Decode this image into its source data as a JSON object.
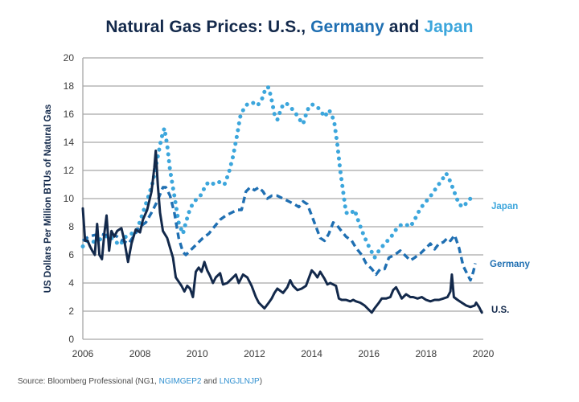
{
  "title": {
    "part1": "Natural Gas Prices: U.S., ",
    "part2": "Germany",
    "part3": " and ",
    "part4": "Japan"
  },
  "source": {
    "prefix": "Source: Bloomberg Professional (NG1, ",
    "germany_code": "NGIMGEP2",
    "middle": " and ",
    "japan_code": "LNGJLNJP",
    "suffix": ")"
  },
  "colors": {
    "us": "#13294b",
    "germany": "#1f6fb2",
    "japan": "#3ca6dc",
    "grid": "#a6a6a6"
  },
  "chart_data": {
    "type": "line",
    "title": "Natural Gas Prices: U.S., Germany and Japan",
    "xlabel": "",
    "ylabel": "US Dollars Per Million BTUs of Natural Gas",
    "xlim": [
      2006,
      2020
    ],
    "ylim": [
      0,
      20
    ],
    "xticks": [
      "2006",
      "2008",
      "2010",
      "2012",
      "2014",
      "2016",
      "2018",
      "2020"
    ],
    "yticks": [
      "0",
      "2",
      "4",
      "6",
      "8",
      "10",
      "12",
      "14",
      "16",
      "18",
      "20"
    ],
    "grid": "horizontal",
    "legend": "inline-right",
    "series": [
      {
        "name": "Japan",
        "style": "dotted",
        "points": [
          [
            2006.0,
            6.6
          ],
          [
            2006.15,
            7.0
          ],
          [
            2006.3,
            6.9
          ],
          [
            2006.5,
            7.0
          ],
          [
            2006.7,
            7.2
          ],
          [
            2006.9,
            7.4
          ],
          [
            2007.1,
            7.0
          ],
          [
            2007.3,
            6.7
          ],
          [
            2007.5,
            7.3
          ],
          [
            2007.7,
            7.5
          ],
          [
            2007.9,
            7.8
          ],
          [
            2008.0,
            8.4
          ],
          [
            2008.15,
            9.3
          ],
          [
            2008.3,
            10.2
          ],
          [
            2008.45,
            11.2
          ],
          [
            2008.6,
            12.8
          ],
          [
            2008.75,
            14.3
          ],
          [
            2008.85,
            15.0
          ],
          [
            2008.95,
            13.8
          ],
          [
            2009.05,
            12.0
          ],
          [
            2009.2,
            10.2
          ],
          [
            2009.35,
            8.3
          ],
          [
            2009.5,
            7.5
          ],
          [
            2009.6,
            8.3
          ],
          [
            2009.75,
            9.3
          ],
          [
            2009.9,
            9.8
          ],
          [
            2010.0,
            10.0
          ],
          [
            2010.15,
            10.3
          ],
          [
            2010.3,
            11.0
          ],
          [
            2010.45,
            11.2
          ],
          [
            2010.6,
            11.0
          ],
          [
            2010.8,
            11.2
          ],
          [
            2010.95,
            11.0
          ],
          [
            2011.1,
            11.8
          ],
          [
            2011.25,
            13.0
          ],
          [
            2011.4,
            14.6
          ],
          [
            2011.5,
            15.8
          ],
          [
            2011.65,
            16.5
          ],
          [
            2011.8,
            16.8
          ],
          [
            2011.95,
            16.8
          ],
          [
            2012.1,
            16.6
          ],
          [
            2012.25,
            17.0
          ],
          [
            2012.4,
            17.9
          ],
          [
            2012.5,
            17.9
          ],
          [
            2012.6,
            17.0
          ],
          [
            2012.7,
            16.0
          ],
          [
            2012.8,
            15.6
          ],
          [
            2012.95,
            16.5
          ],
          [
            2013.1,
            16.8
          ],
          [
            2013.25,
            16.5
          ],
          [
            2013.4,
            16.2
          ],
          [
            2013.55,
            15.7
          ],
          [
            2013.7,
            15.3
          ],
          [
            2013.85,
            16.3
          ],
          [
            2014.0,
            16.7
          ],
          [
            2014.15,
            16.6
          ],
          [
            2014.3,
            16.3
          ],
          [
            2014.45,
            15.8
          ],
          [
            2014.6,
            16.3
          ],
          [
            2014.7,
            16.0
          ],
          [
            2014.8,
            15.3
          ],
          [
            2014.9,
            13.8
          ],
          [
            2015.0,
            12.0
          ],
          [
            2015.1,
            10.5
          ],
          [
            2015.2,
            9.0
          ],
          [
            2015.35,
            8.9
          ],
          [
            2015.5,
            9.2
          ],
          [
            2015.65,
            8.3
          ],
          [
            2015.8,
            7.5
          ],
          [
            2015.95,
            6.8
          ],
          [
            2016.1,
            6.2
          ],
          [
            2016.2,
            5.8
          ],
          [
            2016.35,
            6.3
          ],
          [
            2016.55,
            6.8
          ],
          [
            2016.75,
            7.2
          ],
          [
            2016.95,
            7.8
          ],
          [
            2017.1,
            8.1
          ],
          [
            2017.25,
            8.2
          ],
          [
            2017.45,
            8.0
          ],
          [
            2017.6,
            8.5
          ],
          [
            2017.8,
            9.3
          ],
          [
            2018.0,
            9.8
          ],
          [
            2018.2,
            10.3
          ],
          [
            2018.4,
            10.9
          ],
          [
            2018.55,
            11.3
          ],
          [
            2018.7,
            11.8
          ],
          [
            2018.85,
            11.2
          ],
          [
            2019.0,
            10.4
          ],
          [
            2019.15,
            9.6
          ],
          [
            2019.3,
            9.4
          ],
          [
            2019.45,
            9.8
          ],
          [
            2019.55,
            10.0
          ],
          [
            2019.65,
            9.6
          ]
        ]
      },
      {
        "name": "Germany",
        "style": "dashed",
        "points": [
          [
            2006.0,
            7.0
          ],
          [
            2006.2,
            7.3
          ],
          [
            2006.4,
            7.4
          ],
          [
            2006.6,
            7.5
          ],
          [
            2006.8,
            7.4
          ],
          [
            2007.0,
            7.5
          ],
          [
            2007.2,
            7.3
          ],
          [
            2007.4,
            7.0
          ],
          [
            2007.6,
            6.8
          ],
          [
            2007.8,
            7.4
          ],
          [
            2008.0,
            8.0
          ],
          [
            2008.2,
            8.3
          ],
          [
            2008.4,
            9.0
          ],
          [
            2008.6,
            9.8
          ],
          [
            2008.8,
            10.8
          ],
          [
            2008.9,
            10.8
          ],
          [
            2009.05,
            10.2
          ],
          [
            2009.2,
            9.0
          ],
          [
            2009.35,
            7.2
          ],
          [
            2009.5,
            6.2
          ],
          [
            2009.6,
            6.0
          ],
          [
            2009.8,
            6.4
          ],
          [
            2010.0,
            6.8
          ],
          [
            2010.2,
            7.2
          ],
          [
            2010.4,
            7.5
          ],
          [
            2010.6,
            8.0
          ],
          [
            2010.8,
            8.5
          ],
          [
            2011.0,
            8.8
          ],
          [
            2011.2,
            9.0
          ],
          [
            2011.4,
            9.2
          ],
          [
            2011.55,
            9.2
          ],
          [
            2011.7,
            10.5
          ],
          [
            2011.85,
            10.8
          ],
          [
            2012.0,
            10.6
          ],
          [
            2012.15,
            10.8
          ],
          [
            2012.3,
            10.5
          ],
          [
            2012.45,
            10.0
          ],
          [
            2012.6,
            10.2
          ],
          [
            2012.8,
            10.2
          ],
          [
            2013.0,
            10.0
          ],
          [
            2013.2,
            9.8
          ],
          [
            2013.4,
            9.6
          ],
          [
            2013.55,
            9.4
          ],
          [
            2013.7,
            9.8
          ],
          [
            2013.85,
            9.6
          ],
          [
            2014.0,
            8.8
          ],
          [
            2014.15,
            8.0
          ],
          [
            2014.3,
            7.2
          ],
          [
            2014.45,
            7.0
          ],
          [
            2014.6,
            7.5
          ],
          [
            2014.75,
            8.3
          ],
          [
            2014.85,
            8.2
          ],
          [
            2015.0,
            7.8
          ],
          [
            2015.2,
            7.3
          ],
          [
            2015.4,
            7.0
          ],
          [
            2015.55,
            6.5
          ],
          [
            2015.75,
            6.0
          ],
          [
            2015.9,
            5.4
          ],
          [
            2016.1,
            5.0
          ],
          [
            2016.25,
            4.6
          ],
          [
            2016.4,
            5.0
          ],
          [
            2016.55,
            5.0
          ],
          [
            2016.7,
            5.8
          ],
          [
            2016.9,
            6.0
          ],
          [
            2017.1,
            6.3
          ],
          [
            2017.3,
            5.9
          ],
          [
            2017.45,
            5.6
          ],
          [
            2017.6,
            5.8
          ],
          [
            2017.8,
            6.1
          ],
          [
            2018.0,
            6.5
          ],
          [
            2018.15,
            6.8
          ],
          [
            2018.3,
            6.4
          ],
          [
            2018.45,
            6.8
          ],
          [
            2018.6,
            6.9
          ],
          [
            2018.75,
            7.2
          ],
          [
            2018.85,
            7.0
          ],
          [
            2019.0,
            7.4
          ],
          [
            2019.15,
            6.5
          ],
          [
            2019.3,
            5.2
          ],
          [
            2019.45,
            4.6
          ],
          [
            2019.55,
            4.2
          ],
          [
            2019.65,
            4.8
          ],
          [
            2019.72,
            5.4
          ]
        ]
      },
      {
        "name": "U.S.",
        "style": "solid",
        "points": [
          [
            2006.0,
            9.3
          ],
          [
            2006.08,
            7.0
          ],
          [
            2006.17,
            7.0
          ],
          [
            2006.25,
            6.6
          ],
          [
            2006.33,
            6.3
          ],
          [
            2006.42,
            6.0
          ],
          [
            2006.5,
            8.2
          ],
          [
            2006.58,
            6.0
          ],
          [
            2006.67,
            5.7
          ],
          [
            2006.75,
            7.5
          ],
          [
            2006.83,
            8.8
          ],
          [
            2006.92,
            6.3
          ],
          [
            2007.0,
            7.7
          ],
          [
            2007.1,
            7.3
          ],
          [
            2007.2,
            7.7
          ],
          [
            2007.35,
            7.9
          ],
          [
            2007.45,
            7.0
          ],
          [
            2007.58,
            5.5
          ],
          [
            2007.7,
            6.8
          ],
          [
            2007.85,
            7.8
          ],
          [
            2008.0,
            7.6
          ],
          [
            2008.1,
            8.5
          ],
          [
            2008.25,
            9.2
          ],
          [
            2008.4,
            10.5
          ],
          [
            2008.5,
            12.2
          ],
          [
            2008.55,
            13.4
          ],
          [
            2008.62,
            11.0
          ],
          [
            2008.7,
            9.0
          ],
          [
            2008.8,
            7.7
          ],
          [
            2008.95,
            7.2
          ],
          [
            2009.05,
            6.5
          ],
          [
            2009.15,
            5.8
          ],
          [
            2009.25,
            4.4
          ],
          [
            2009.35,
            4.1
          ],
          [
            2009.45,
            3.8
          ],
          [
            2009.55,
            3.4
          ],
          [
            2009.65,
            3.8
          ],
          [
            2009.75,
            3.6
          ],
          [
            2009.85,
            3.0
          ],
          [
            2009.95,
            4.8
          ],
          [
            2010.05,
            5.1
          ],
          [
            2010.15,
            4.8
          ],
          [
            2010.25,
            5.5
          ],
          [
            2010.35,
            4.9
          ],
          [
            2010.45,
            4.5
          ],
          [
            2010.55,
            4.0
          ],
          [
            2010.65,
            4.4
          ],
          [
            2010.8,
            4.7
          ],
          [
            2010.9,
            3.9
          ],
          [
            2011.05,
            4.0
          ],
          [
            2011.2,
            4.3
          ],
          [
            2011.35,
            4.6
          ],
          [
            2011.45,
            4.0
          ],
          [
            2011.6,
            4.6
          ],
          [
            2011.75,
            4.4
          ],
          [
            2011.9,
            3.8
          ],
          [
            2012.05,
            3.0
          ],
          [
            2012.15,
            2.6
          ],
          [
            2012.25,
            2.4
          ],
          [
            2012.35,
            2.2
          ],
          [
            2012.5,
            2.6
          ],
          [
            2012.6,
            2.9
          ],
          [
            2012.7,
            3.3
          ],
          [
            2012.8,
            3.6
          ],
          [
            2013.0,
            3.3
          ],
          [
            2013.15,
            3.7
          ],
          [
            2013.25,
            4.2
          ],
          [
            2013.35,
            3.8
          ],
          [
            2013.5,
            3.5
          ],
          [
            2013.65,
            3.6
          ],
          [
            2013.8,
            3.8
          ],
          [
            2014.0,
            4.9
          ],
          [
            2014.1,
            4.7
          ],
          [
            2014.2,
            4.4
          ],
          [
            2014.3,
            4.8
          ],
          [
            2014.45,
            4.3
          ],
          [
            2014.55,
            3.9
          ],
          [
            2014.65,
            4.0
          ],
          [
            2014.75,
            3.9
          ],
          [
            2014.85,
            3.8
          ],
          [
            2014.95,
            2.9
          ],
          [
            2015.05,
            2.8
          ],
          [
            2015.2,
            2.8
          ],
          [
            2015.35,
            2.7
          ],
          [
            2015.45,
            2.8
          ],
          [
            2015.55,
            2.7
          ],
          [
            2015.7,
            2.6
          ],
          [
            2015.85,
            2.4
          ],
          [
            2015.95,
            2.2
          ],
          [
            2016.1,
            1.9
          ],
          [
            2016.2,
            2.2
          ],
          [
            2016.35,
            2.6
          ],
          [
            2016.45,
            2.9
          ],
          [
            2016.6,
            2.9
          ],
          [
            2016.75,
            3.0
          ],
          [
            2016.85,
            3.5
          ],
          [
            2016.95,
            3.7
          ],
          [
            2017.05,
            3.3
          ],
          [
            2017.15,
            2.9
          ],
          [
            2017.3,
            3.2
          ],
          [
            2017.45,
            3.0
          ],
          [
            2017.55,
            3.0
          ],
          [
            2017.7,
            2.9
          ],
          [
            2017.85,
            3.0
          ],
          [
            2018.0,
            2.8
          ],
          [
            2018.15,
            2.7
          ],
          [
            2018.3,
            2.8
          ],
          [
            2018.45,
            2.8
          ],
          [
            2018.6,
            2.9
          ],
          [
            2018.75,
            3.0
          ],
          [
            2018.85,
            3.4
          ],
          [
            2018.9,
            4.6
          ],
          [
            2018.97,
            3.0
          ],
          [
            2019.1,
            2.8
          ],
          [
            2019.25,
            2.6
          ],
          [
            2019.4,
            2.4
          ],
          [
            2019.55,
            2.3
          ],
          [
            2019.7,
            2.4
          ],
          [
            2019.75,
            2.6
          ],
          [
            2019.85,
            2.3
          ],
          [
            2019.95,
            1.9
          ]
        ]
      }
    ]
  }
}
